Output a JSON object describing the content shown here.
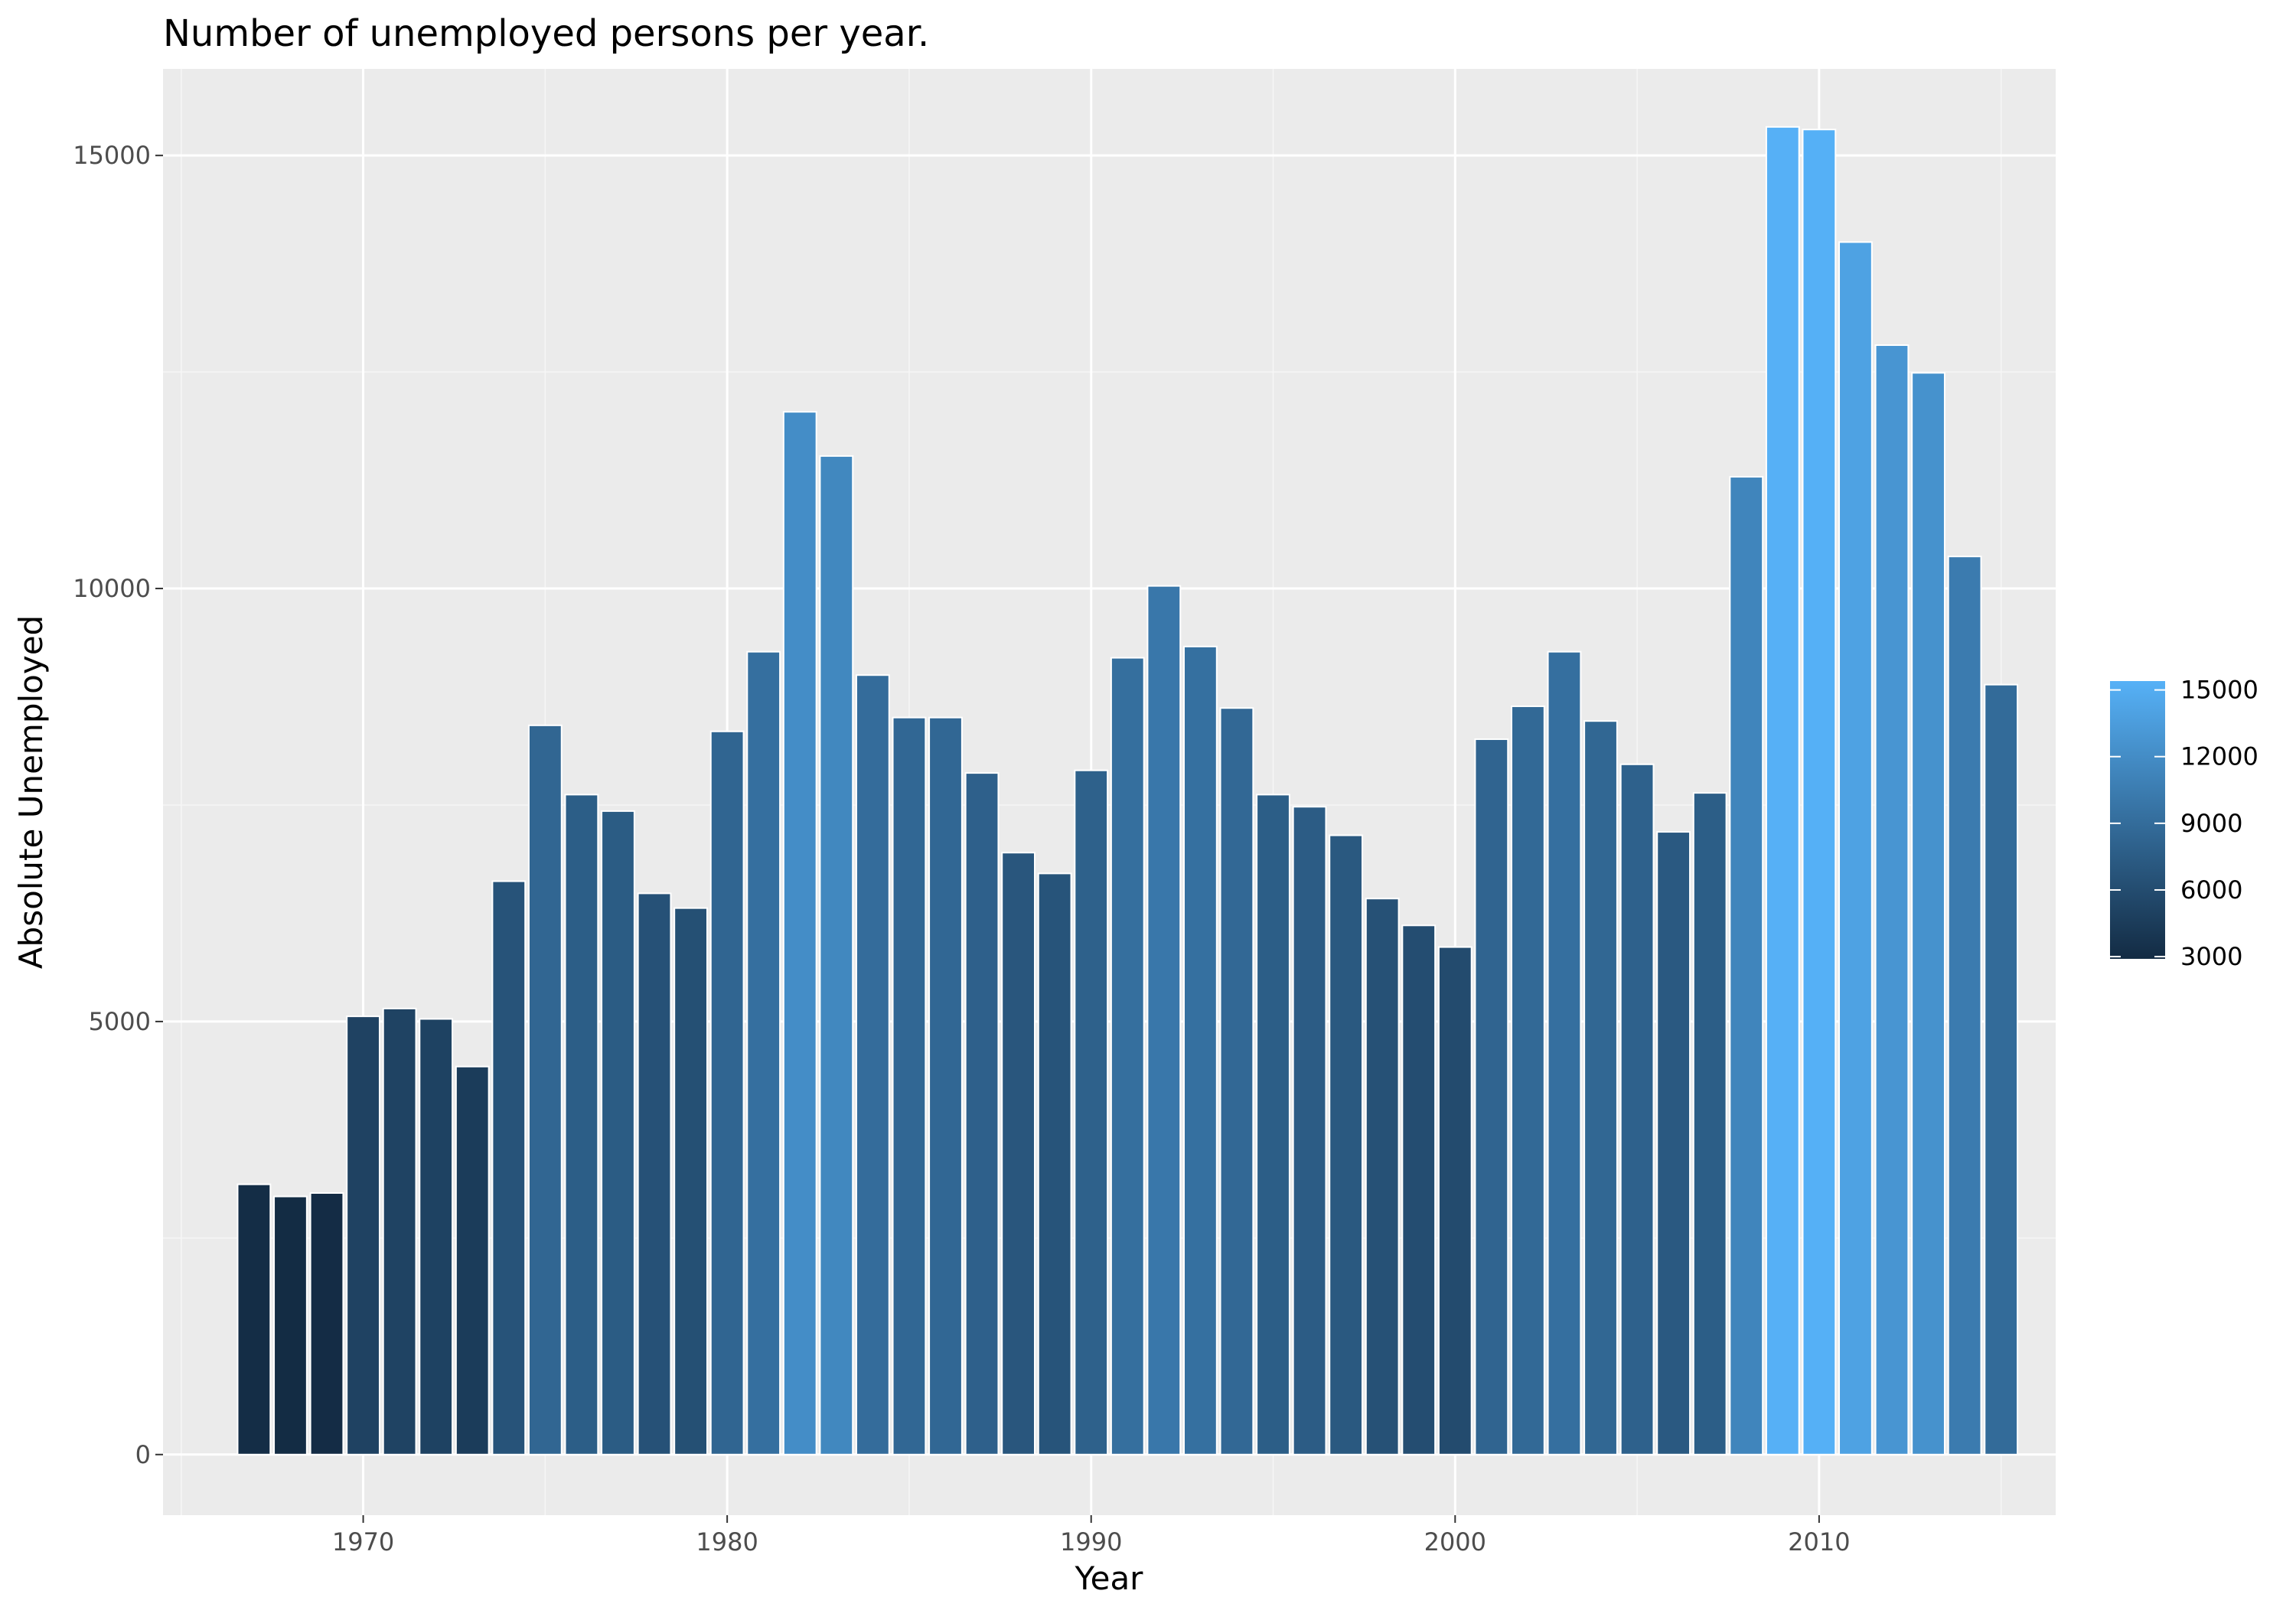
{
  "chart_data": {
    "type": "bar",
    "title": "Number of unemployed persons per year.",
    "xlabel": "Year",
    "ylabel": "Absolute Unemployed",
    "x_ticks": [
      1970,
      1980,
      1990,
      2000,
      2010
    ],
    "y_ticks": [
      0,
      5000,
      10000,
      15000
    ],
    "xlim": [
      1964.5,
      2016.5
    ],
    "ylim": [
      -700,
      16000
    ],
    "grid": true,
    "legend": {
      "placement": "right",
      "ticks": [
        3000,
        6000,
        9000,
        12000,
        15000
      ],
      "range": [
        2900,
        15400
      ],
      "color_low": "#132b43",
      "color_high": "#56b1f7"
    },
    "categories": [
      1967,
      1968,
      1969,
      1970,
      1971,
      1972,
      1973,
      1974,
      1975,
      1976,
      1977,
      1978,
      1979,
      1980,
      1981,
      1982,
      1983,
      1984,
      1985,
      1986,
      1987,
      1988,
      1989,
      1990,
      1991,
      1992,
      1993,
      1994,
      1995,
      1996,
      1997,
      1998,
      1999,
      2000,
      2001,
      2002,
      2003,
      2004,
      2005,
      2006,
      2007,
      2008,
      2009,
      2010,
      2011,
      2012,
      2013,
      2014,
      2015
    ],
    "values": [
      3120,
      2980,
      3020,
      5060,
      5150,
      5030,
      4480,
      6620,
      8420,
      7620,
      7430,
      6480,
      6310,
      8350,
      9270,
      12040,
      11530,
      9000,
      8510,
      8510,
      7870,
      6950,
      6710,
      7900,
      9200,
      10030,
      9330,
      8620,
      7620,
      7480,
      7150,
      6420,
      6110,
      5860,
      8260,
      8640,
      9270,
      8470,
      7970,
      7190,
      7640,
      11290,
      15330,
      15300,
      14000,
      12810,
      12490,
      10370,
      8890
    ]
  }
}
